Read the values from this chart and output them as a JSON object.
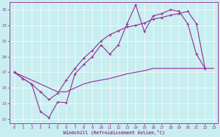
{
  "xlabel": "Windchill (Refroidissement éolien,°C)",
  "xlim": [
    -0.5,
    23.5
  ],
  "ylim": [
    10.5,
    26.0
  ],
  "yticks": [
    11,
    13,
    15,
    17,
    19,
    21,
    23,
    25
  ],
  "xticks": [
    0,
    1,
    2,
    3,
    4,
    5,
    6,
    7,
    8,
    9,
    10,
    11,
    12,
    13,
    14,
    15,
    16,
    17,
    18,
    19,
    20,
    21,
    22,
    23
  ],
  "bg_color": "#c8eef0",
  "line_color": "#993399",
  "grid_color": "#ffffff",
  "s1y": [
    17.0,
    16.2,
    15.5,
    12.0,
    11.2,
    13.2,
    13.1,
    16.8,
    18.0,
    19.0,
    20.5,
    19.3,
    20.5,
    23.2,
    25.6,
    22.2,
    24.2,
    24.5,
    25.0,
    24.8,
    23.2,
    19.3,
    17.5,
    null
  ],
  "s2y": [
    17.0,
    16.2,
    15.5,
    14.5,
    13.5,
    14.3,
    16.0,
    17.5,
    18.8,
    19.8,
    21.0,
    21.8,
    22.3,
    22.8,
    23.0,
    23.3,
    23.8,
    24.0,
    24.3,
    24.5,
    24.8,
    23.2,
    17.5,
    null
  ],
  "s3y": [
    17.0,
    16.5,
    16.0,
    15.5,
    15.0,
    14.5,
    14.5,
    15.0,
    15.5,
    15.8,
    16.0,
    16.2,
    16.5,
    16.8,
    17.0,
    17.2,
    17.5,
    17.5,
    17.5,
    17.5,
    17.5,
    17.5,
    17.5,
    17.5
  ]
}
